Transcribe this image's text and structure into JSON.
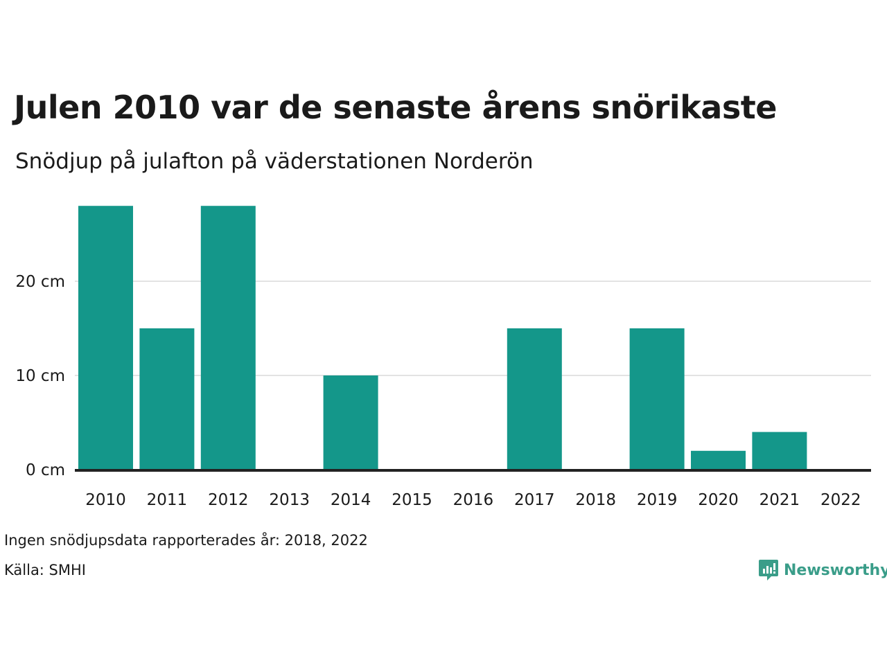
{
  "header": {
    "title": "Julen 2010 var de senaste årens snörikaste",
    "subtitle": "Snödjup på julafton på väderstationen Norderön"
  },
  "footer": {
    "note": "Ingen snödjupsdata rapporterades år: 2018, 2022",
    "source": "Källa: SMHI",
    "brand": "Newsworthy"
  },
  "colors": {
    "bar": "#14978a",
    "grid": "#e3e3e3",
    "axis": "#222222",
    "brand": "#3a9d89"
  },
  "chart_data": {
    "type": "bar",
    "title": "Julen 2010 var de senaste årens snörikaste",
    "subtitle": "Snödjup på julafton på väderstationen Norderön",
    "categories": [
      "2010",
      "2011",
      "2012",
      "2013",
      "2014",
      "2015",
      "2016",
      "2017",
      "2018",
      "2019",
      "2020",
      "2021",
      "2022"
    ],
    "values": [
      28,
      15,
      28,
      0,
      10,
      0,
      0,
      15,
      null,
      15,
      2,
      4,
      null
    ],
    "unit": "cm",
    "yticks": [
      "0 cm",
      "10 cm",
      "20 cm"
    ],
    "ytick_values": [
      0,
      10,
      20
    ],
    "ylim": [
      0,
      28
    ],
    "grid": true,
    "legend": "none"
  }
}
